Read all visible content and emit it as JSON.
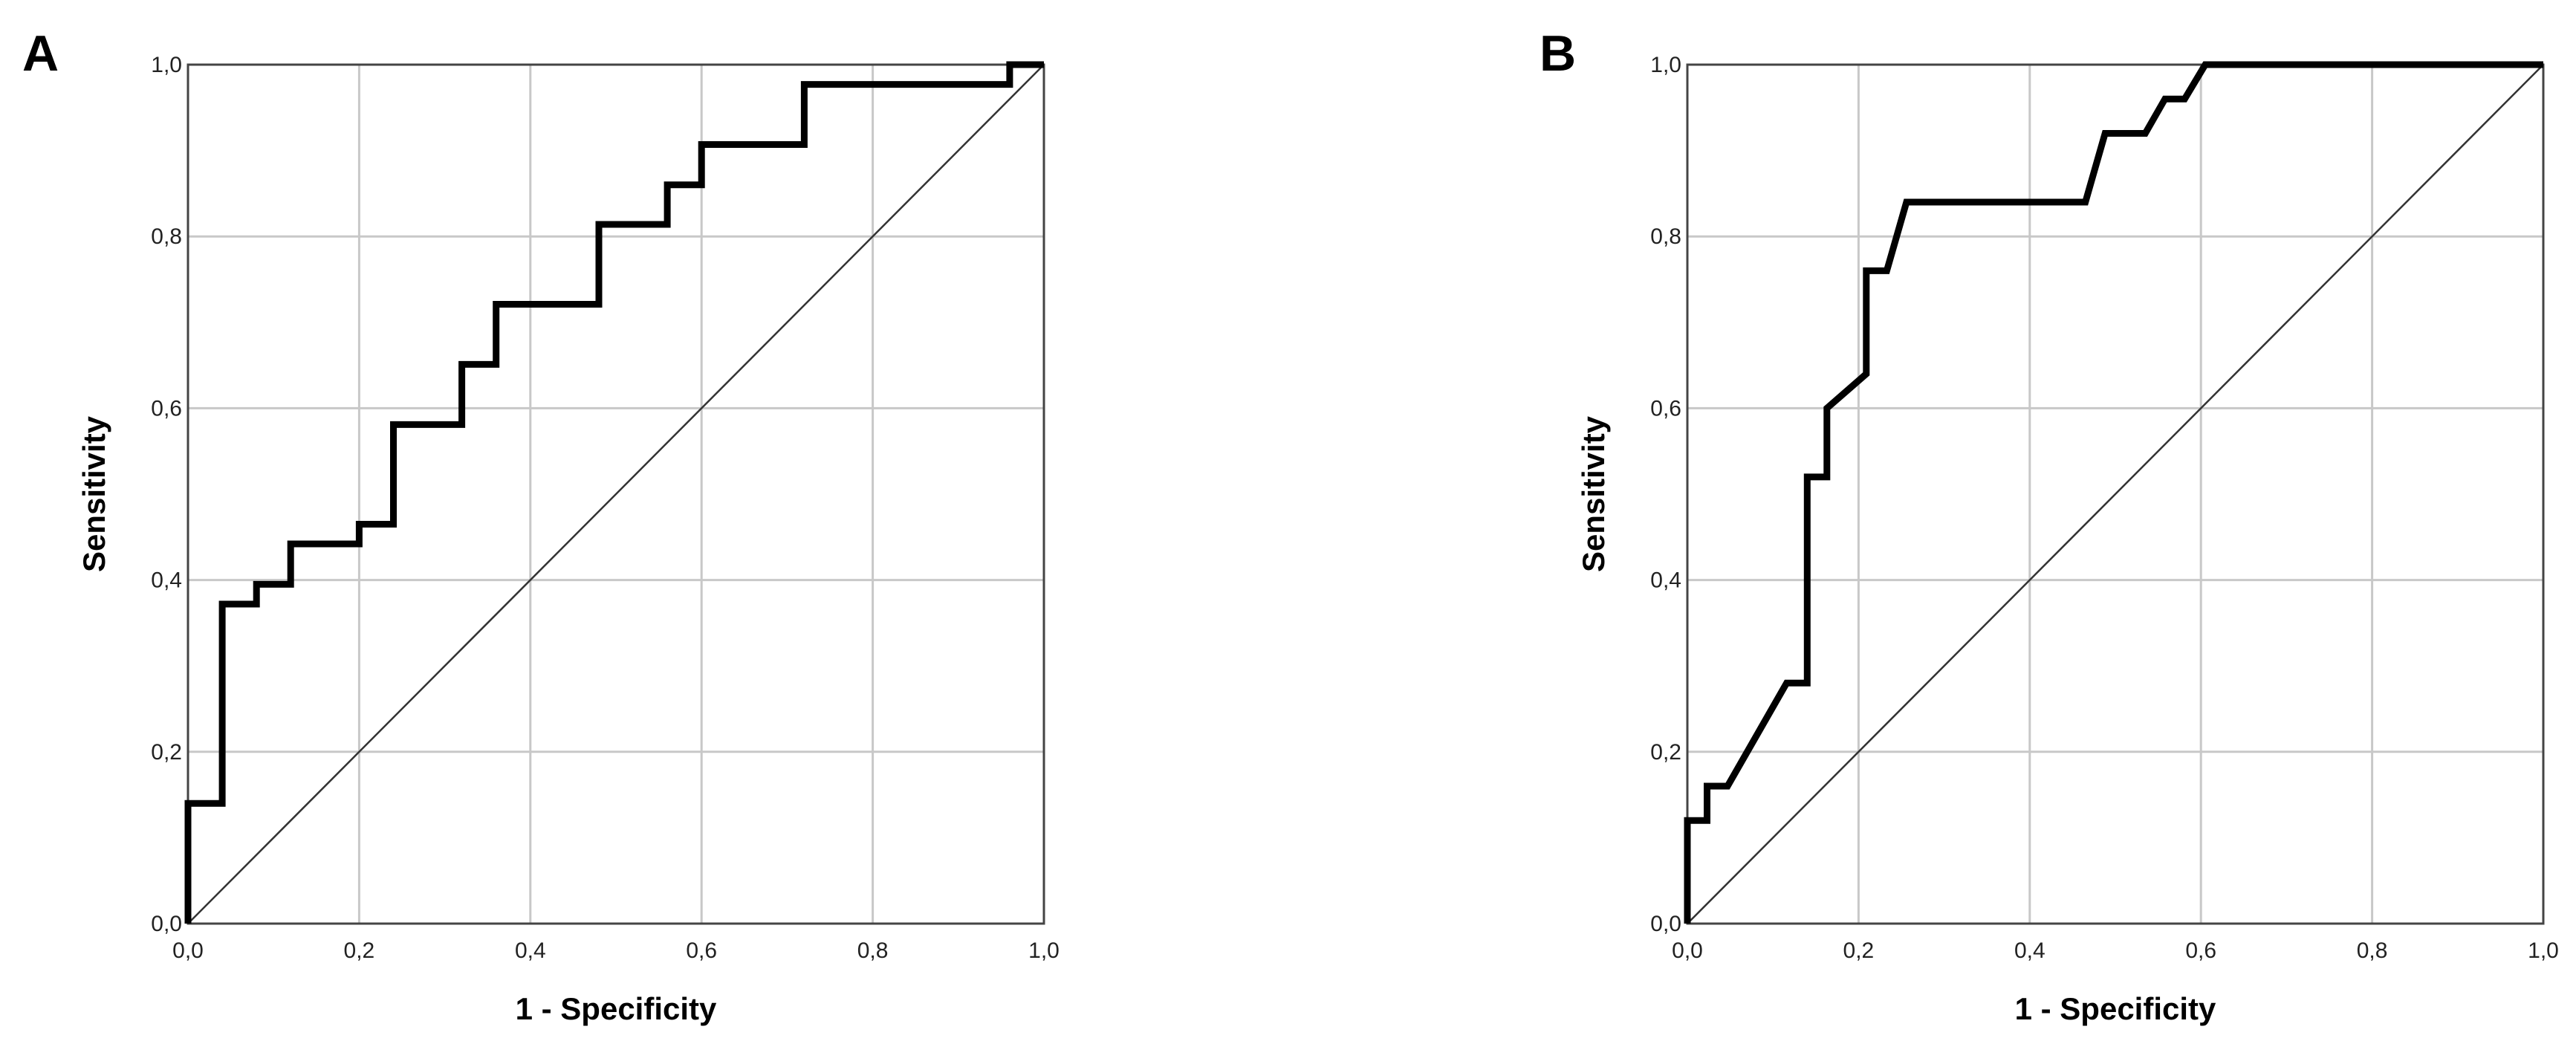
{
  "chart_data": [
    {
      "type": "line",
      "panel_label": "A",
      "xlabel": "1 - Specificity",
      "ylabel": "Sensitivity",
      "xlim": [
        0,
        1
      ],
      "ylim": [
        0,
        1
      ],
      "x_ticks": [
        "0,0",
        "0,2",
        "0,4",
        "0,6",
        "0,8",
        "1,0"
      ],
      "y_ticks": [
        "0,0",
        "0,2",
        "0,4",
        "0,6",
        "0,8",
        "1,0"
      ],
      "grid": true,
      "reference_line": true,
      "series": [
        {
          "points": [
            [
              0,
              0
            ],
            [
              0,
              0.14
            ],
            [
              0.04,
              0.14
            ],
            [
              0.04,
              0.372
            ],
            [
              0.08,
              0.372
            ],
            [
              0.08,
              0.395
            ],
            [
              0.12,
              0.395
            ],
            [
              0.12,
              0.442
            ],
            [
              0.2,
              0.442
            ],
            [
              0.2,
              0.465
            ],
            [
              0.24,
              0.465
            ],
            [
              0.24,
              0.581
            ],
            [
              0.32,
              0.581
            ],
            [
              0.32,
              0.651
            ],
            [
              0.36,
              0.651
            ],
            [
              0.36,
              0.721
            ],
            [
              0.48,
              0.721
            ],
            [
              0.48,
              0.814
            ],
            [
              0.56,
              0.814
            ],
            [
              0.56,
              0.86
            ],
            [
              0.6,
              0.86
            ],
            [
              0.6,
              0.907
            ],
            [
              0.72,
              0.907
            ],
            [
              0.72,
              0.977
            ],
            [
              0.96,
              0.977
            ],
            [
              0.96,
              1.0
            ],
            [
              1.0,
              1.0
            ]
          ]
        }
      ]
    },
    {
      "type": "line",
      "panel_label": "B",
      "xlabel": "1 - Specificity",
      "ylabel": "Sensitivity",
      "xlim": [
        0,
        1
      ],
      "ylim": [
        0,
        1
      ],
      "x_ticks": [
        "0,0",
        "0,2",
        "0,4",
        "0,6",
        "0,8",
        "1,0"
      ],
      "y_ticks": [
        "0,0",
        "0,2",
        "0,4",
        "0,6",
        "0,8",
        "1,0"
      ],
      "grid": true,
      "reference_line": true,
      "series": [
        {
          "points": [
            [
              0,
              0
            ],
            [
              0,
              0.12
            ],
            [
              0.023,
              0.12
            ],
            [
              0.023,
              0.16
            ],
            [
              0.047,
              0.16
            ],
            [
              0.116,
              0.28
            ],
            [
              0.14,
              0.28
            ],
            [
              0.14,
              0.52
            ],
            [
              0.163,
              0.52
            ],
            [
              0.163,
              0.6
            ],
            [
              0.209,
              0.64
            ],
            [
              0.209,
              0.76
            ],
            [
              0.233,
              0.76
            ],
            [
              0.256,
              0.84
            ],
            [
              0.465,
              0.84
            ],
            [
              0.488,
              0.92
            ],
            [
              0.535,
              0.92
            ],
            [
              0.558,
              0.96
            ],
            [
              0.581,
              0.96
            ],
            [
              0.605,
              1.0
            ],
            [
              1.0,
              1.0
            ]
          ]
        }
      ]
    }
  ]
}
